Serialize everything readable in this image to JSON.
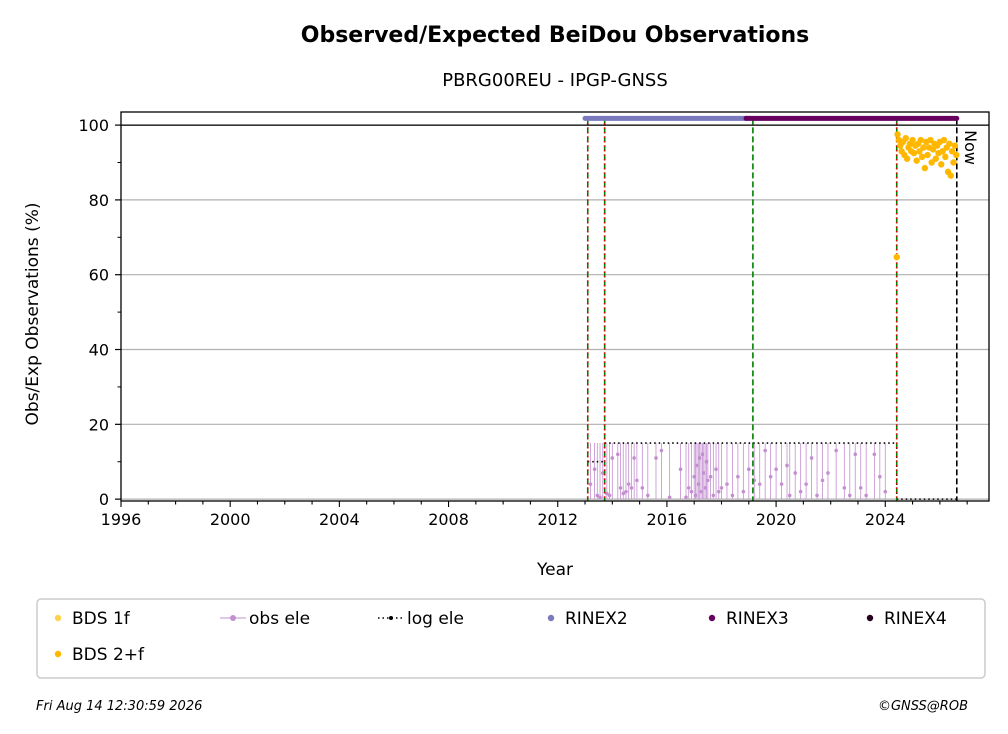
{
  "chart_data": {
    "type": "scatter",
    "title": "Observed/Expected BeiDou Observations",
    "subtitle": "PBRG00REU - IPGP-GNSS",
    "xlabel": "Year",
    "ylabel": "Obs/Exp Observations (%)",
    "xlim": [
      1996,
      2027.8
    ],
    "ylim": [
      -0.5,
      103.5
    ],
    "xticks": [
      1996,
      2000,
      2004,
      2008,
      2012,
      2016,
      2020,
      2024
    ],
    "yticks": [
      0,
      20,
      40,
      60,
      80,
      100
    ],
    "grid": "horizontal",
    "reference_line_y": 100,
    "now_label": "Now",
    "now_x": 2026.62,
    "vlines_red": [
      2013.1,
      2013.72,
      2024.42
    ],
    "vlines_green": [
      2013.1,
      2013.72,
      2019.15,
      2024.42
    ],
    "rinex_bars": [
      {
        "series": "RINEX2",
        "x_start": 2013.0,
        "x_end": 2018.9,
        "y": 101.8
      },
      {
        "series": "RINEX3",
        "x_start": 2018.9,
        "x_end": 2026.62,
        "y": 101.8
      }
    ],
    "log_ele": [
      {
        "x_start": 2013.1,
        "x_end": 2013.72,
        "y": 10
      },
      {
        "x_start": 2013.72,
        "x_end": 2024.42,
        "y": 15
      },
      {
        "x_start": 2024.42,
        "x_end": 2026.62,
        "y": 0
      }
    ],
    "obs_ele_points": [
      [
        2013.2,
        4
      ],
      [
        2013.35,
        8
      ],
      [
        2013.45,
        1
      ],
      [
        2013.55,
        0.5
      ],
      [
        2013.65,
        7
      ],
      [
        2013.8,
        1.5
      ],
      [
        2013.9,
        1
      ],
      [
        2014.0,
        11
      ],
      [
        2014.2,
        12
      ],
      [
        2014.3,
        3
      ],
      [
        2014.4,
        1.5
      ],
      [
        2014.5,
        2
      ],
      [
        2014.6,
        4
      ],
      [
        2014.7,
        3
      ],
      [
        2014.8,
        11
      ],
      [
        2014.9,
        5
      ],
      [
        2015.1,
        3
      ],
      [
        2015.3,
        1
      ],
      [
        2015.6,
        11
      ],
      [
        2015.8,
        13
      ],
      [
        2016.1,
        0.5
      ],
      [
        2016.5,
        8
      ],
      [
        2016.7,
        0.5
      ],
      [
        2016.8,
        3
      ],
      [
        2016.9,
        2
      ],
      [
        2017.0,
        6
      ],
      [
        2017.05,
        1
      ],
      [
        2017.1,
        9
      ],
      [
        2017.15,
        4
      ],
      [
        2017.2,
        11
      ],
      [
        2017.25,
        2
      ],
      [
        2017.3,
        12
      ],
      [
        2017.35,
        7
      ],
      [
        2017.4,
        3
      ],
      [
        2017.45,
        10
      ],
      [
        2017.5,
        5
      ],
      [
        2017.6,
        6
      ],
      [
        2017.7,
        1
      ],
      [
        2017.8,
        8
      ],
      [
        2017.9,
        2
      ],
      [
        2018.0,
        3
      ],
      [
        2018.2,
        4
      ],
      [
        2018.4,
        1
      ],
      [
        2018.6,
        6
      ],
      [
        2018.8,
        2
      ],
      [
        2019.0,
        8
      ],
      [
        2019.2,
        5
      ],
      [
        2019.4,
        4
      ],
      [
        2019.6,
        13
      ],
      [
        2019.8,
        6
      ],
      [
        2020.0,
        8
      ],
      [
        2020.2,
        4
      ],
      [
        2020.4,
        9
      ],
      [
        2020.5,
        1
      ],
      [
        2020.7,
        7
      ],
      [
        2020.9,
        2
      ],
      [
        2021.1,
        4
      ],
      [
        2021.3,
        11
      ],
      [
        2021.5,
        1
      ],
      [
        2021.7,
        5
      ],
      [
        2021.9,
        7
      ],
      [
        2022.2,
        13
      ],
      [
        2022.5,
        3
      ],
      [
        2022.7,
        1
      ],
      [
        2022.9,
        12
      ],
      [
        2023.1,
        3
      ],
      [
        2023.3,
        1
      ],
      [
        2023.6,
        12
      ],
      [
        2023.8,
        6
      ],
      [
        2024.0,
        2
      ]
    ],
    "bds_2f_points": [
      [
        2024.42,
        64.7
      ],
      [
        2024.45,
        97.5
      ],
      [
        2024.5,
        96
      ],
      [
        2024.55,
        94.5
      ],
      [
        2024.6,
        93
      ],
      [
        2024.65,
        95.5
      ],
      [
        2024.7,
        92
      ],
      [
        2024.75,
        96.5
      ],
      [
        2024.8,
        91
      ],
      [
        2024.85,
        94
      ],
      [
        2024.9,
        95
      ],
      [
        2024.95,
        93
      ],
      [
        2025.0,
        96
      ],
      [
        2025.05,
        92.5
      ],
      [
        2025.1,
        94.5
      ],
      [
        2025.15,
        90.5
      ],
      [
        2025.2,
        95
      ],
      [
        2025.25,
        93
      ],
      [
        2025.3,
        96
      ],
      [
        2025.35,
        91.5
      ],
      [
        2025.4,
        94
      ],
      [
        2025.45,
        88.5
      ],
      [
        2025.5,
        95.5
      ],
      [
        2025.55,
        92
      ],
      [
        2025.6,
        94
      ],
      [
        2025.65,
        96
      ],
      [
        2025.7,
        90
      ],
      [
        2025.75,
        93.5
      ],
      [
        2025.8,
        95
      ],
      [
        2025.85,
        91
      ],
      [
        2025.9,
        94.5
      ],
      [
        2025.95,
        92.5
      ],
      [
        2026.0,
        95.5
      ],
      [
        2026.05,
        89.5
      ],
      [
        2026.1,
        93
      ],
      [
        2026.15,
        96
      ],
      [
        2026.2,
        91.5
      ],
      [
        2026.25,
        94
      ],
      [
        2026.3,
        87.5
      ],
      [
        2026.35,
        95
      ],
      [
        2026.4,
        86.5
      ],
      [
        2026.45,
        93
      ],
      [
        2026.5,
        90
      ],
      [
        2026.55,
        94.5
      ],
      [
        2026.6,
        92
      ]
    ]
  },
  "legend": [
    {
      "label": "BDS 1f",
      "marker": "dot",
      "color": "#ffd24d"
    },
    {
      "label": "obs ele",
      "marker": "line-dot",
      "color": "#c38fd0"
    },
    {
      "label": "log ele",
      "marker": "dotted-line",
      "color": "#000000"
    },
    {
      "label": "RINEX2",
      "marker": "dot",
      "color": "#7b79bd"
    },
    {
      "label": "RINEX3",
      "marker": "dot",
      "color": "#67005f"
    },
    {
      "label": "RINEX4",
      "marker": "dot",
      "color": "#26001f"
    },
    {
      "label": "BDS 2+f",
      "marker": "dot",
      "color": "#ffb700"
    }
  ],
  "colors": {
    "bds_2f": "#ffb700",
    "obs_ele": "#c38fd0",
    "rinex2": "#7b79bd",
    "rinex3": "#67005f",
    "red_line": "#e00000",
    "green_line": "#008000",
    "grid": "#b0b0b0"
  },
  "footer": {
    "timestamp": "Fri Aug 14 12:30:59 2026",
    "credit": "©GNSS@ROB"
  }
}
